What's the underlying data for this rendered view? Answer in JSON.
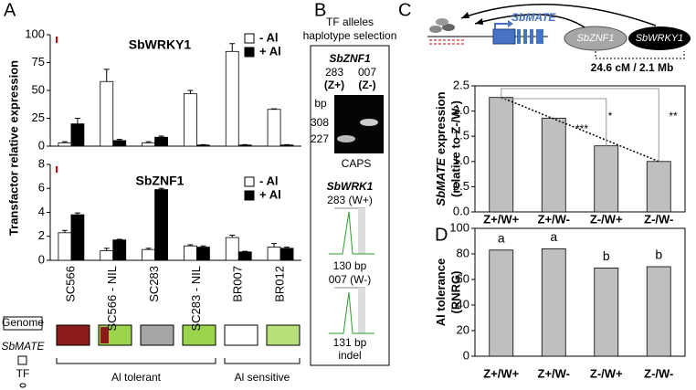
{
  "chart_data": [
    {
      "type": "bar",
      "title": "SbWRKY1",
      "categories": [
        null,
        null,
        null,
        null,
        null,
        null
      ],
      "series": [
        {
          "name": "- Al",
          "color": "#ffffff",
          "values": [
            3,
            58,
            3,
            47,
            85,
            33
          ],
          "errors": [
            1,
            11,
            1,
            3,
            7,
            0.5
          ]
        },
        {
          "name": "+ Al",
          "color": "#000000",
          "values": [
            20,
            5,
            8,
            1,
            1,
            1
          ],
          "errors": [
            5,
            1,
            1,
            0.3,
            0.3,
            0.3
          ]
        }
      ],
      "ylim": [
        0,
        100
      ],
      "yticks": [
        0,
        25,
        50,
        75,
        100
      ]
    },
    {
      "type": "bar",
      "title": "SbZNF1",
      "categories": [
        "SC566",
        "SC566 - NIL",
        "SC283",
        "SC283 - NIL",
        "BR007",
        "BR012"
      ],
      "series": [
        {
          "name": "- Al",
          "color": "#ffffff",
          "values": [
            2.3,
            0.8,
            0.9,
            1.2,
            1.9,
            1.1
          ],
          "errors": [
            0.2,
            0.2,
            0.1,
            0.1,
            0.2,
            0.3
          ]
        },
        {
          "name": "+ Al",
          "color": "#000000",
          "values": [
            3.8,
            1.7,
            5.9,
            1.1,
            0.7,
            1.0
          ],
          "errors": [
            0.15,
            0.05,
            0.1,
            0.1,
            0.05,
            0.1
          ]
        }
      ],
      "ylim": [
        0,
        8
      ],
      "yticks": [
        0,
        2,
        4,
        6,
        8
      ]
    },
    {
      "type": "bar",
      "ylabel_gene": "SbMATE",
      "ylabel": "expression",
      "ylabel_2": "(relative to Z-/W-)",
      "categories": [
        "Z+/W+",
        "Z+/W-",
        "Z-/W+",
        "Z-/W-"
      ],
      "values": [
        2.27,
        1.86,
        1.31,
        1.0
      ],
      "color": "#bfbfbf",
      "ylim": [
        0,
        2.5
      ],
      "yticks": [
        {
          "value": 0,
          "label": "0.0"
        },
        0.5,
        {
          "value": 1,
          "label": "1.0"
        },
        1.5,
        {
          "value": 2,
          "label": "2.0"
        },
        2.5
      ],
      "annotations": [
        "***",
        "*",
        "**"
      ]
    },
    {
      "type": "bar",
      "ylabel": "Al tolerance",
      "ylabel_2": "(RNRG)",
      "categories": [
        "Z+/W+",
        "Z+/W-",
        "Z-/W+",
        "Z-/W-"
      ],
      "values": [
        83,
        84,
        69,
        70
      ],
      "color": "#bfbfbf",
      "letters": [
        "a",
        "a",
        "b",
        "b"
      ],
      "ylim": [
        0,
        100
      ],
      "yticks": [
        0,
        20,
        40,
        60,
        80,
        100
      ]
    }
  ],
  "panels": {
    "A": {
      "label": "A",
      "ylabel": "Transfactor relative expression",
      "legend": {
        "genome": "Genome",
        "gene": "SbMATE",
        "tf": "TF",
        "tolerant": "Al tolerant",
        "sensitive": "Al sensitive"
      }
    },
    "B": {
      "label": "B",
      "title": "TF alleles",
      "title_2": "haplotype selection",
      "gene_1": "SbZNF1",
      "allele_1": "283",
      "allele_2": "007",
      "hap_1": "(Z+)",
      "hap_2": "(Z-)",
      "bp": "bp",
      "band_1": "308",
      "band_2": "227",
      "method_1": "CAPS",
      "gene_2": "SbWRK1",
      "allele_3": "283 (W+)",
      "size_1": "130 bp",
      "allele_4": "007 (W-)",
      "size_2": "131 bp",
      "method_2": "indel"
    },
    "C": {
      "label": "C",
      "gene": "SbMATE",
      "tf_1": "SbZNF1",
      "tf_2": "SbWRKY1",
      "distance": "24.6 cM / 2.1 Mb"
    },
    "D": {
      "label": "D"
    }
  }
}
